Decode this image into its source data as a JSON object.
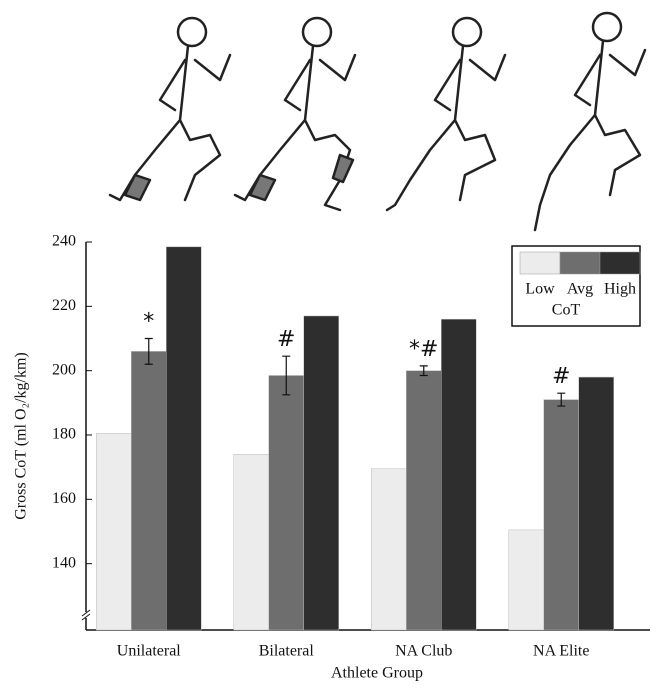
{
  "chart_data": {
    "type": "bar",
    "categories": [
      "Unilateral",
      "Bilateral",
      "NA Club",
      "NA Elite"
    ],
    "xlabel": "Athlete Group",
    "ylabel": "Gross CoT (ml O₂/kg/km)",
    "series": [
      {
        "name": "Low",
        "color": "#ececec",
        "values": [
          180.5,
          174,
          169.5,
          150.5
        ]
      },
      {
        "name": "Avg",
        "color": "#6e6e6e",
        "values": [
          206,
          198.5,
          200,
          191
        ],
        "errors": [
          4,
          6,
          1.5,
          2
        ]
      },
      {
        "name": "High",
        "color": "#2e2e2e",
        "values": [
          238.5,
          217,
          216,
          198
        ]
      }
    ],
    "annotations": [
      "*",
      "#",
      "*#",
      "#"
    ],
    "legend_title": "CoT",
    "legend": "upper right",
    "ylim": [
      120,
      240
    ],
    "yticks": [
      140,
      160,
      180,
      200,
      220,
      240
    ]
  }
}
